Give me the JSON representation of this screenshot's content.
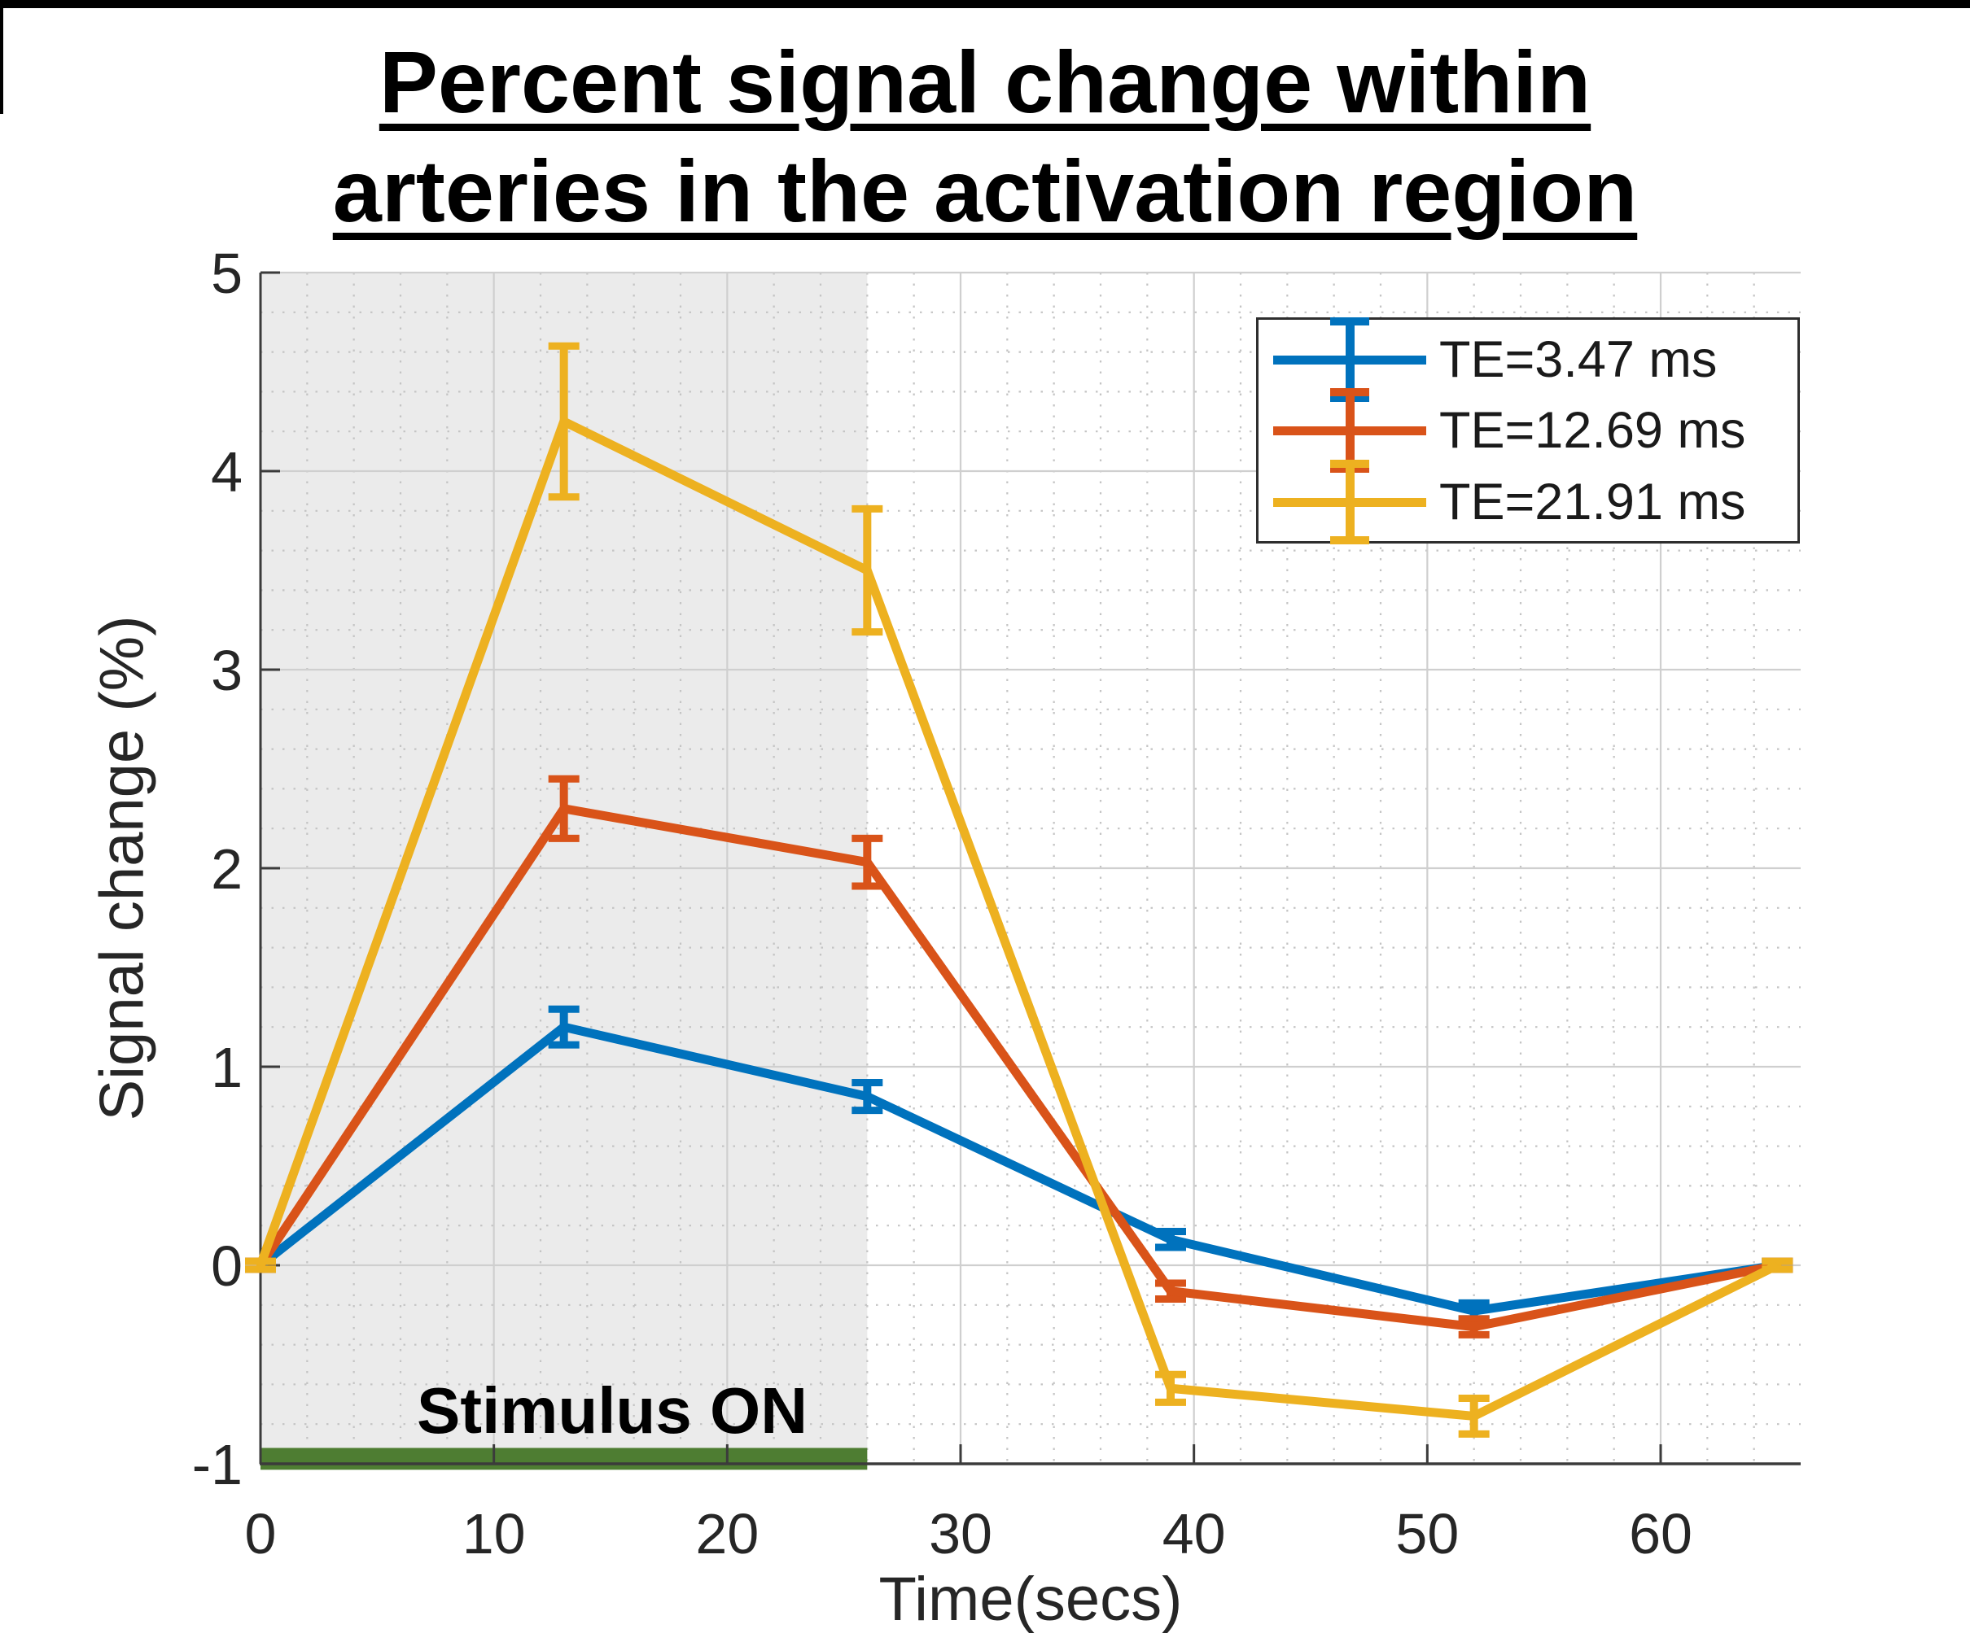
{
  "title": {
    "line1": "Percent signal change within",
    "line2": "arteries in the activation region"
  },
  "axes": {
    "xlabel": "Time(secs)",
    "ylabel": "Signal change (%)",
    "x_ticks": [
      0,
      10,
      20,
      30,
      40,
      50,
      60
    ],
    "y_ticks": [
      -1,
      0,
      1,
      2,
      3,
      4,
      5
    ],
    "xlim": [
      0,
      66
    ],
    "ylim": [
      -1,
      5
    ],
    "x_minor_step": 2,
    "y_minor_step": 0.2
  },
  "stimulus": {
    "label": "Stimulus ON",
    "t_start": 0,
    "t_end": 26,
    "region_color": "#EBEBEB",
    "bar_color": "#4E7D32"
  },
  "chart_data": {
    "type": "line",
    "title": "Percent signal change within arteries in the activation region",
    "xlabel": "Time(secs)",
    "ylabel": "Signal change (%)",
    "xlim": [
      0,
      66
    ],
    "ylim": [
      -1,
      5
    ],
    "grid": "major solid, minor dotted",
    "legend_position": "top-right",
    "x": [
      0,
      13,
      26,
      39,
      52,
      65
    ],
    "series": [
      {
        "name": "TE=3.47 ms",
        "color": "#0072BD",
        "values": [
          0,
          1.2,
          0.85,
          0.13,
          -0.23,
          0
        ],
        "errors": [
          0.02,
          0.09,
          0.07,
          0.04,
          0.04,
          0.02
        ]
      },
      {
        "name": "TE=12.69 ms",
        "color": "#D95319",
        "values": [
          0,
          2.3,
          2.03,
          -0.13,
          -0.31,
          0
        ],
        "errors": [
          0.02,
          0.15,
          0.12,
          0.04,
          0.04,
          0.02
        ]
      },
      {
        "name": "TE=21.91 ms",
        "color": "#EDB120",
        "values": [
          0,
          4.25,
          3.5,
          -0.62,
          -0.76,
          0
        ],
        "errors": [
          0.02,
          0.38,
          0.31,
          0.07,
          0.09,
          0.02
        ]
      }
    ],
    "stimulus_on": {
      "label": "Stimulus ON",
      "start": 0,
      "end": 26
    }
  }
}
